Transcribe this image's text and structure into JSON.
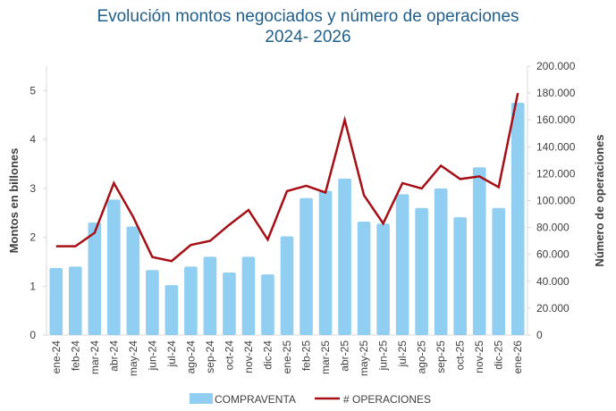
{
  "chart_data": {
    "type": "bar+line",
    "title": "Evolución montos negociados y número de operaciones",
    "subtitle": "2024- 2026",
    "categories": [
      "ene-24",
      "feb-24",
      "mar-24",
      "abr-24",
      "may-24",
      "jun-24",
      "jul-24",
      "ago-24",
      "sep-24",
      "oct-24",
      "nov-24",
      "dic-24",
      "ene-25",
      "feb-25",
      "mar-25",
      "abr-25",
      "may-25",
      "jun-25",
      "jul-25",
      "ago-25",
      "sep-25",
      "oct-25",
      "nov-25",
      "dic-25",
      "ene-26"
    ],
    "series": [
      {
        "name": "COMPRAVENTA",
        "type": "bar",
        "axis": "left",
        "color": "#91cff2",
        "values": [
          1.37,
          1.4,
          2.3,
          2.77,
          2.22,
          1.33,
          1.02,
          1.4,
          1.6,
          1.28,
          1.6,
          1.24,
          2.02,
          2.8,
          2.95,
          3.2,
          2.32,
          2.28,
          2.88,
          2.6,
          3.0,
          2.41,
          3.43,
          2.6,
          4.75
        ]
      },
      {
        "name": "# OPERACIONES",
        "type": "line",
        "axis": "right",
        "color": "#a50f15",
        "values": [
          66000,
          66000,
          76000,
          113000,
          88000,
          58000,
          55000,
          67000,
          70000,
          82000,
          93000,
          71000,
          107000,
          111000,
          106000,
          160000,
          104000,
          83000,
          113000,
          109000,
          126000,
          116000,
          118000,
          110000,
          180000
        ]
      }
    ],
    "ylabel": "Montos en billones",
    "y2label": "Número de operaciones",
    "ylim": [
      0,
      5.5
    ],
    "y2lim": [
      0,
      200000
    ],
    "yticks": [
      "0",
      "1",
      "2",
      "3",
      "4",
      "5"
    ],
    "y2ticks": [
      "0",
      "20.000",
      "40.000",
      "60.000",
      "80.000",
      "100.000",
      "120.000",
      "140.000",
      "160.000",
      "180.000",
      "200.000"
    ],
    "grid": false,
    "legend": "bottom"
  }
}
